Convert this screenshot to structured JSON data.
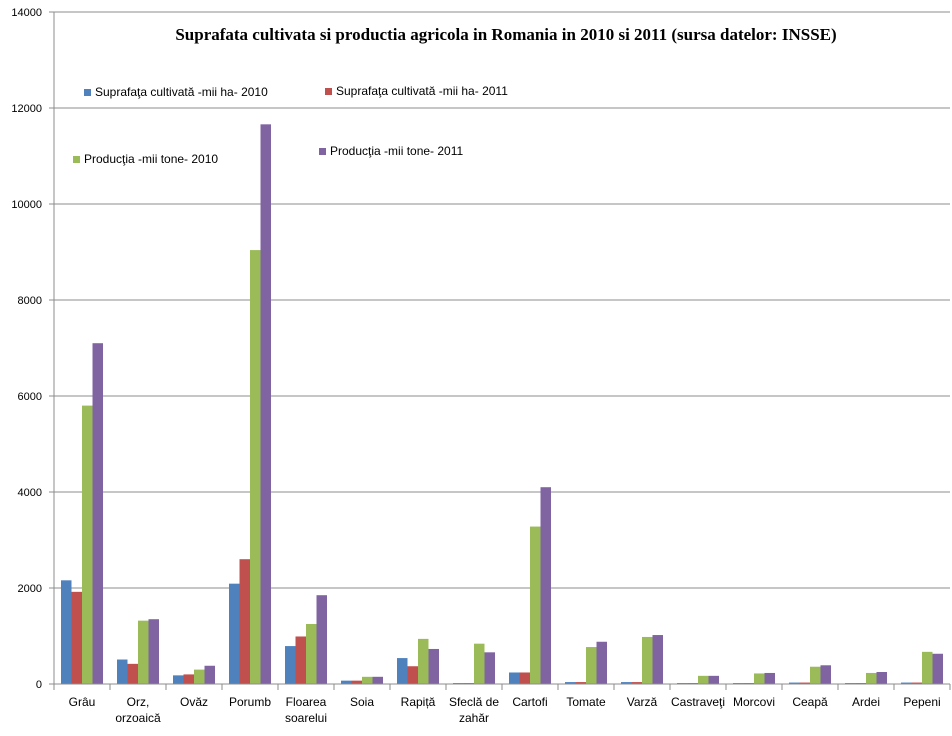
{
  "chart_data": {
    "type": "bar",
    "title": "Suprafata cultivata si productia agricola in Romania in 2010 si 2011 (sursa datelor: INSSE)",
    "xlabel": "",
    "ylabel": "",
    "ylim": [
      0,
      14000
    ],
    "yticks": [
      0,
      2000,
      4000,
      6000,
      8000,
      10000,
      12000,
      14000
    ],
    "grid": true,
    "categories": [
      [
        "Grâu"
      ],
      [
        "Orz,",
        "orzoaică"
      ],
      [
        "Ovăz"
      ],
      [
        "Porumb"
      ],
      [
        "Floarea",
        "soarelui"
      ],
      [
        "Soia"
      ],
      [
        "Rapiță"
      ],
      [
        "Sfeclă de",
        "zahăr"
      ],
      [
        "Cartofi"
      ],
      [
        "Tomate"
      ],
      [
        "Varză"
      ],
      [
        "Castraveţi"
      ],
      [
        "Morcovi"
      ],
      [
        "Ceapă"
      ],
      [
        "Ardei"
      ],
      [
        "Pepeni"
      ]
    ],
    "series": [
      {
        "name": "Suprafaţa cultivată -mii ha- 2010",
        "color": "#4f81bd",
        "values": [
          2160,
          510,
          180,
          2090,
          790,
          70,
          540,
          20,
          240,
          40,
          40,
          20,
          20,
          30,
          20,
          30
        ]
      },
      {
        "name": "Suprafaţa cultivată -mii ha- 2011",
        "color": "#c0504d",
        "values": [
          1920,
          420,
          200,
          2600,
          990,
          70,
          370,
          20,
          240,
          40,
          40,
          20,
          20,
          30,
          20,
          30
        ]
      },
      {
        "name": "Producţia -mii tone- 2010",
        "color": "#9bbb59",
        "values": [
          5800,
          1320,
          300,
          9040,
          1250,
          150,
          940,
          840,
          3280,
          770,
          980,
          170,
          220,
          360,
          230,
          670
        ]
      },
      {
        "name": "Producţia -mii tone- 2011",
        "color": "#8064a2",
        "values": [
          7100,
          1350,
          380,
          11660,
          1850,
          150,
          730,
          660,
          4100,
          880,
          1020,
          170,
          230,
          390,
          250,
          630
        ]
      }
    ],
    "legend": "top-left, inside plot"
  }
}
